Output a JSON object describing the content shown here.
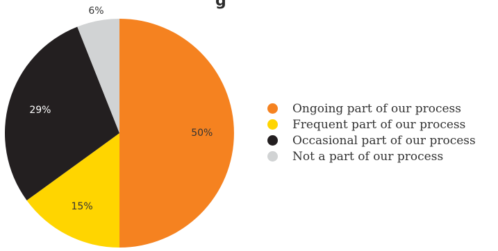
{
  "title_fragment": "g",
  "colors": {
    "ongoing": "#f58220",
    "frequent": "#ffd500",
    "occasional": "#231f20",
    "not_part": "#d1d3d4"
  },
  "chart_data": {
    "type": "pie",
    "title": "",
    "slices": [
      {
        "label": "Ongoing part of our process",
        "value": 50,
        "display": "50%",
        "color": "#f58220"
      },
      {
        "label": "Frequent part of our process",
        "value": 15,
        "display": "15%",
        "color": "#ffd500"
      },
      {
        "label": "Occasional part of our process",
        "value": 29,
        "display": "29%",
        "color": "#231f20"
      },
      {
        "label": "Not a part of our process",
        "value": 6,
        "display": "6%",
        "color": "#d1d3d4"
      }
    ],
    "start_angle": "12 o'clock",
    "direction": "clockwise",
    "legend_position": "right"
  }
}
